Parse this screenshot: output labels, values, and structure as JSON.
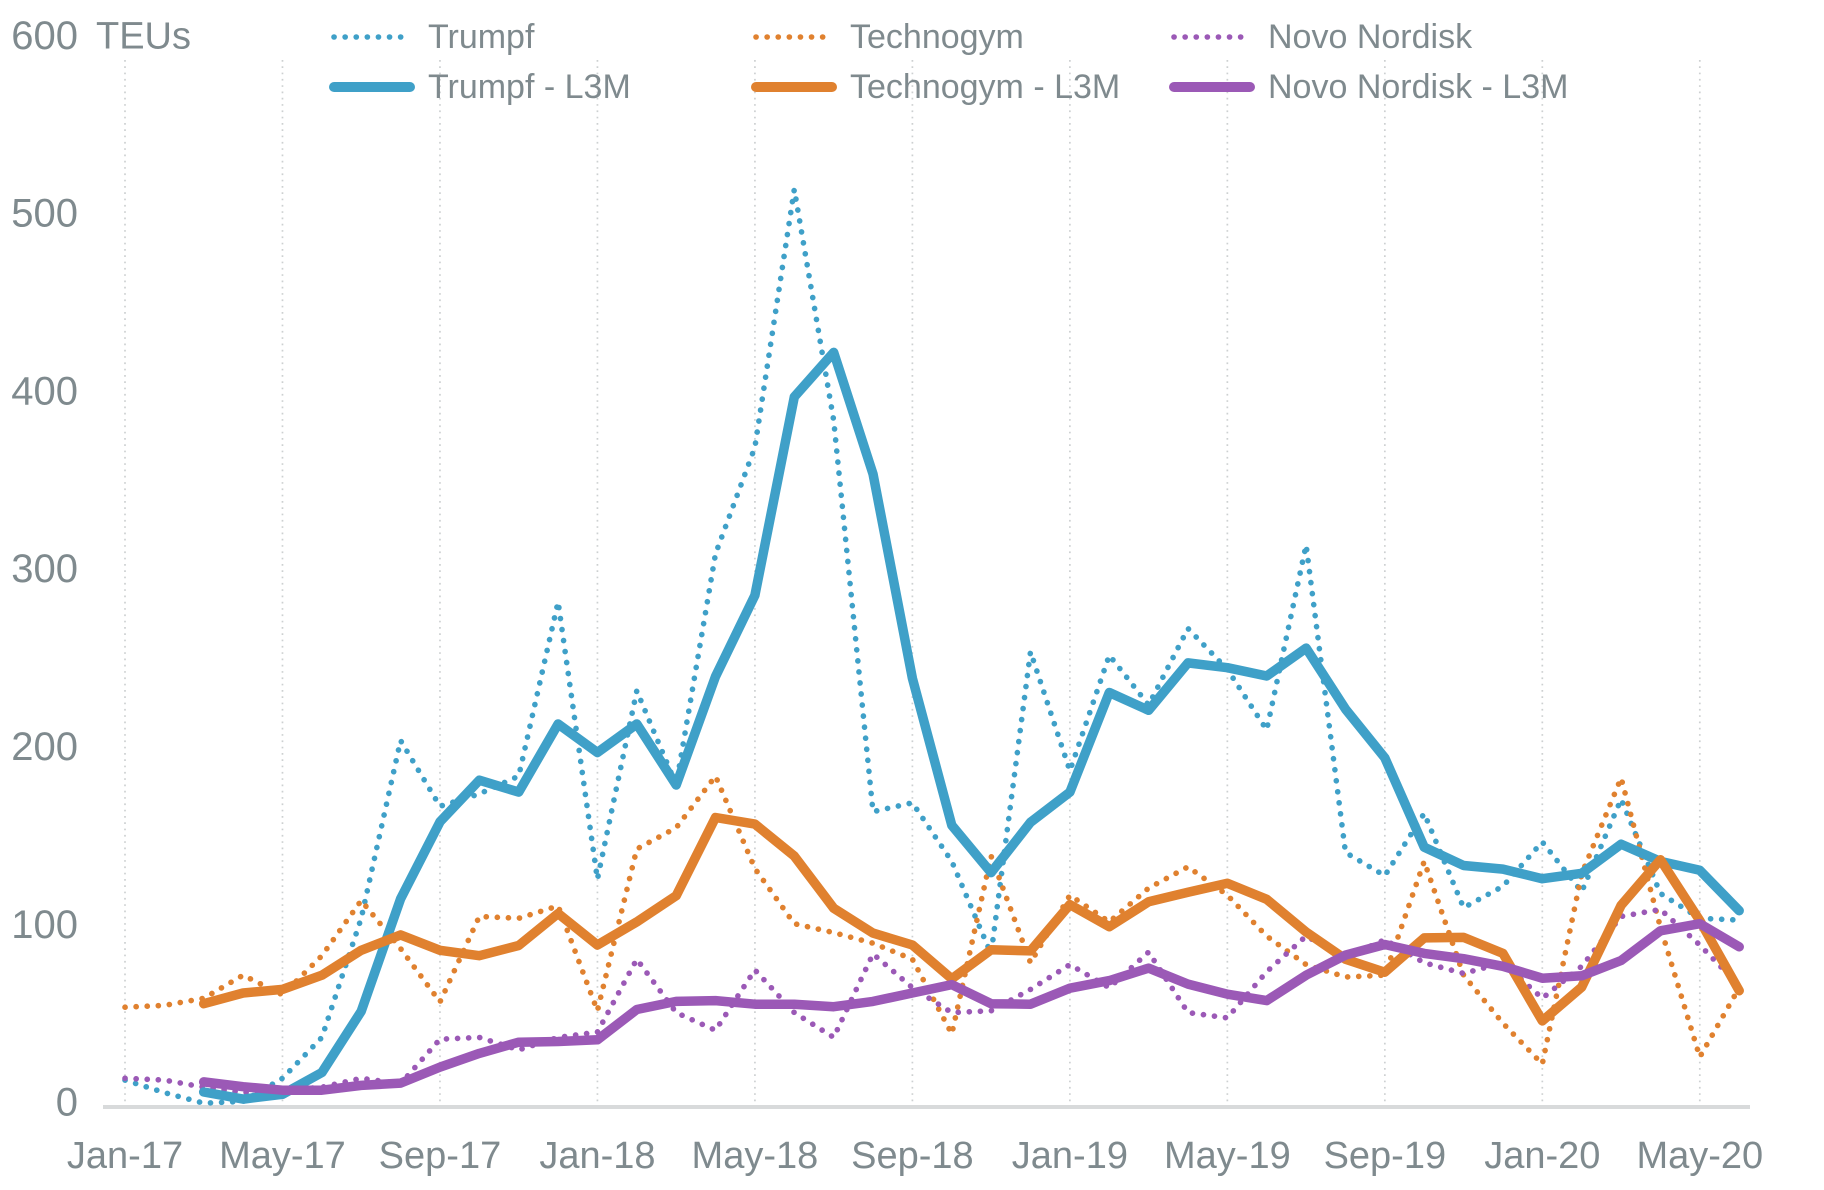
{
  "chart_data": {
    "type": "line",
    "title": "",
    "y_unit_label": "TEUs",
    "ylabel": "",
    "xlabel": "",
    "ylim": [
      0,
      600
    ],
    "y_ticks": [
      0,
      100,
      200,
      300,
      400,
      500,
      600
    ],
    "x": [
      "Jan-17",
      "Feb-17",
      "Mar-17",
      "Apr-17",
      "May-17",
      "Jun-17",
      "Jul-17",
      "Aug-17",
      "Sep-17",
      "Oct-17",
      "Nov-17",
      "Dec-17",
      "Jan-18",
      "Feb-18",
      "Mar-18",
      "Apr-18",
      "May-18",
      "Jun-18",
      "Jul-18",
      "Aug-18",
      "Sep-18",
      "Oct-18",
      "Nov-18",
      "Dec-18",
      "Jan-19",
      "Feb-19",
      "Mar-19",
      "Apr-19",
      "May-19",
      "Jun-19",
      "Jul-19",
      "Aug-19",
      "Sep-19",
      "Oct-19",
      "Nov-19",
      "Dec-19",
      "Jan-20",
      "Feb-20",
      "Mar-20",
      "Apr-20",
      "May-20",
      "Jun-20"
    ],
    "x_tick_labels": [
      "Jan-17",
      "May-17",
      "Sep-17",
      "Jan-18",
      "May-18",
      "Sep-18",
      "Jan-19",
      "May-19",
      "Sep-19",
      "Jan-20",
      "May-20"
    ],
    "x_tick_every": 4,
    "grid": "vertical-dotted",
    "legend_position": "top",
    "colors": {
      "blue": "#3FA0C8",
      "orange": "#E0812F",
      "purple": "#9B59B6",
      "axis_text": "#7F8A8E",
      "gridline": "#CDD0D1",
      "axis_line": "#D8DADB"
    },
    "series": [
      {
        "name": "Trumpf",
        "style": "dotted",
        "color_key": "blue",
        "values": [
          14,
          7,
          1,
          2,
          15,
          38,
          105,
          205,
          168,
          175,
          185,
          283,
          127,
          233,
          180,
          310,
          370,
          515,
          385,
          165,
          170,
          137,
          85,
          255,
          188,
          253,
          225,
          268,
          245,
          211,
          315,
          142,
          129,
          164,
          111,
          123,
          148,
          120,
          172,
          119,
          105,
          104
        ]
      },
      {
        "name": "Technogym",
        "style": "dotted",
        "color_key": "orange",
        "values": [
          55,
          56,
          60,
          73,
          62,
          84,
          115,
          88,
          58,
          106,
          105,
          112,
          53,
          144,
          156,
          185,
          133,
          102,
          97,
          91,
          82,
          40,
          140,
          80,
          118,
          103,
          122,
          134,
          118,
          95,
          79,
          72,
          73,
          137,
          73,
          46,
          23,
          130,
          184,
          100,
          27,
          66
        ]
      },
      {
        "name": "Novo Nordisk",
        "style": "dotted",
        "color_key": "purple",
        "values": [
          15,
          14,
          10,
          7,
          8,
          10,
          15,
          12,
          37,
          38,
          31,
          38,
          41,
          82,
          52,
          42,
          76,
          52,
          38,
          85,
          66,
          52,
          53,
          65,
          79,
          66,
          86,
          52,
          49,
          75,
          95,
          83,
          93,
          80,
          74,
          80,
          60,
          78,
          106,
          110,
          90,
          67
        ]
      },
      {
        "name": "Trumpf - L3M",
        "style": "solid",
        "color_key": "blue",
        "values": [
          null,
          null,
          7.3,
          3.3,
          6,
          18.3,
          52.7,
          116,
          159.3,
          182.7,
          176,
          214.3,
          198.3,
          214.3,
          180,
          241,
          286.7,
          398.3,
          423.3,
          355,
          240,
          157.3,
          130.7,
          159,
          176,
          232,
          222,
          248.7,
          246,
          241.3,
          257,
          222.7,
          195.3,
          145,
          134.7,
          132.7,
          127.3,
          130.3,
          146.7,
          137,
          132,
          109.3
        ]
      },
      {
        "name": "Technogym - L3M",
        "style": "solid",
        "color_key": "orange",
        "values": [
          null,
          null,
          57,
          63,
          65,
          73,
          87,
          95.7,
          87,
          84,
          89.7,
          107.7,
          90,
          103,
          117.7,
          161.7,
          158,
          140,
          110.7,
          96.7,
          90,
          71,
          87.3,
          86.7,
          112.7,
          100.3,
          114.3,
          119.7,
          124.7,
          115.7,
          97.3,
          82,
          74.7,
          94,
          94.3,
          85.3,
          47.3,
          66.3,
          112.3,
          138,
          103.7,
          64.3
        ]
      },
      {
        "name": "Novo Nordisk - L3M",
        "style": "solid",
        "color_key": "purple",
        "values": [
          null,
          null,
          13,
          10.3,
          8.3,
          8.3,
          11,
          12.3,
          21.3,
          29,
          35.3,
          35.7,
          36.7,
          53.7,
          58.3,
          58.7,
          56.7,
          56.7,
          55.3,
          58.3,
          63,
          67.7,
          57,
          56.7,
          65.7,
          70,
          77,
          68,
          62.3,
          58.7,
          73,
          84.3,
          90.3,
          85.3,
          82.3,
          78,
          71.3,
          72.7,
          81.3,
          98,
          102,
          89
        ]
      }
    ]
  },
  "legend": {
    "items": [
      {
        "label": "Trumpf"
      },
      {
        "label": "Technogym"
      },
      {
        "label": "Novo Nordisk"
      },
      {
        "label": "Trumpf - L3M"
      },
      {
        "label": "Technogym - L3M"
      },
      {
        "label": "Novo Nordisk - L3M"
      }
    ]
  }
}
